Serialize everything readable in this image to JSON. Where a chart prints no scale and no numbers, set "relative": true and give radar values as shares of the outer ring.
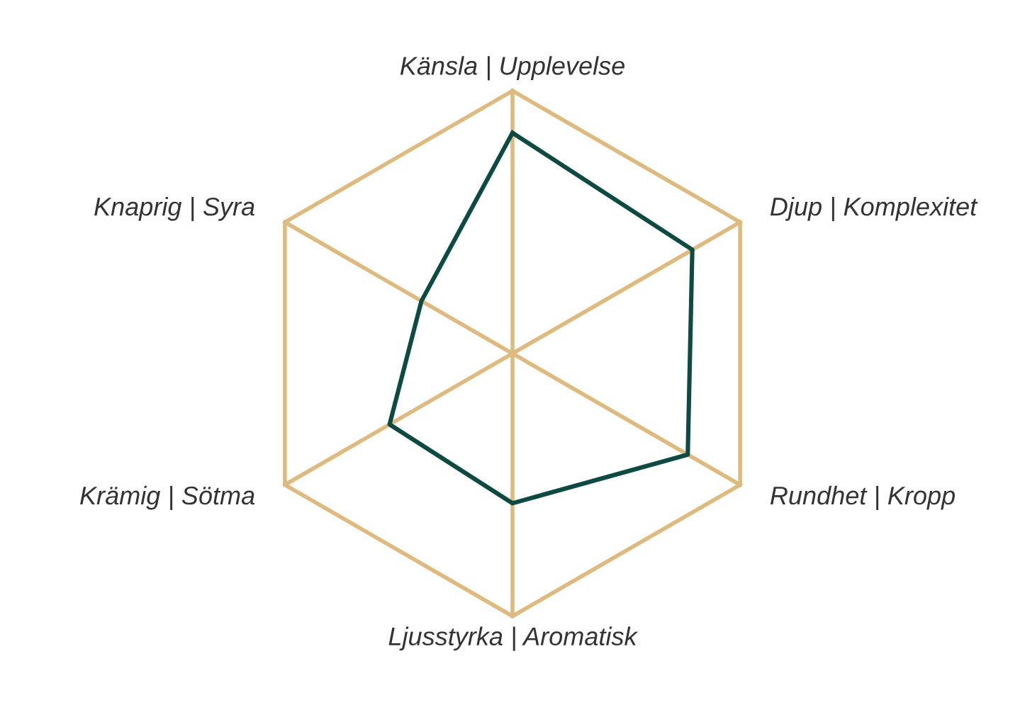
{
  "chart_data": {
    "type": "radar",
    "relative": true,
    "grid": true,
    "categories": [
      "Känsla | Upplevelse",
      "Djup | Komplexitet",
      "Rundhet | Kropp",
      "Ljusstyrka | Aromatisk",
      "Krämig | Sötma",
      "Knaprig | Syra"
    ],
    "series": [
      {
        "color": "#0d4a42",
        "values": [
          0.84,
          0.79,
          0.77,
          0.57,
          0.54,
          0.4
        ]
      }
    ]
  }
}
